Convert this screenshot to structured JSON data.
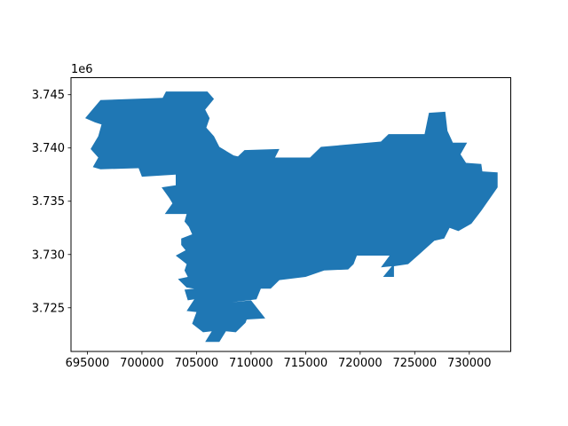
{
  "chart_data": {
    "type": "area",
    "title": "",
    "xlabel": "",
    "ylabel": "",
    "y_offset_label": "1e6",
    "xlim": [
      693500,
      733800
    ],
    "ylim": [
      3720900,
      3746600
    ],
    "xticks": [
      {
        "value": 695000,
        "label": "695000"
      },
      {
        "value": 700000,
        "label": "700000"
      },
      {
        "value": 705000,
        "label": "705000"
      },
      {
        "value": 710000,
        "label": "710000"
      },
      {
        "value": 715000,
        "label": "715000"
      },
      {
        "value": 720000,
        "label": "720000"
      },
      {
        "value": 725000,
        "label": "725000"
      },
      {
        "value": 730000,
        "label": "730000"
      }
    ],
    "yticks": [
      {
        "value": 3725000,
        "label": "3.725"
      },
      {
        "value": 3730000,
        "label": "3.730"
      },
      {
        "value": 3735000,
        "label": "3.735"
      },
      {
        "value": 3740000,
        "label": "3.740"
      },
      {
        "value": 3745000,
        "label": "3.745"
      }
    ],
    "grid": false,
    "fill_color": "#1f77b4",
    "polygon": [
      [
        694800,
        3742800
      ],
      [
        696200,
        3744500
      ],
      [
        701900,
        3744700
      ],
      [
        702200,
        3745300
      ],
      [
        706000,
        3745300
      ],
      [
        706600,
        3744600
      ],
      [
        705800,
        3743600
      ],
      [
        706200,
        3742800
      ],
      [
        705900,
        3741900
      ],
      [
        706600,
        3741100
      ],
      [
        707100,
        3740100
      ],
      [
        708400,
        3739300
      ],
      [
        708800,
        3739200
      ],
      [
        709400,
        3739800
      ],
      [
        712600,
        3739900
      ],
      [
        712200,
        3739100
      ],
      [
        715400,
        3739100
      ],
      [
        716400,
        3740100
      ],
      [
        721900,
        3740600
      ],
      [
        722600,
        3741300
      ],
      [
        725900,
        3741300
      ],
      [
        726300,
        3743300
      ],
      [
        727800,
        3743400
      ],
      [
        728000,
        3741600
      ],
      [
        728500,
        3740500
      ],
      [
        729800,
        3740500
      ],
      [
        729200,
        3739400
      ],
      [
        729700,
        3738600
      ],
      [
        731100,
        3738500
      ],
      [
        731200,
        3737800
      ],
      [
        732600,
        3737700
      ],
      [
        732600,
        3736300
      ],
      [
        731100,
        3734100
      ],
      [
        730200,
        3732900
      ],
      [
        729000,
        3732200
      ],
      [
        728200,
        3732500
      ],
      [
        727700,
        3731500
      ],
      [
        726800,
        3731300
      ],
      [
        725400,
        3730000
      ],
      [
        724400,
        3729100
      ],
      [
        723100,
        3728900
      ],
      [
        723100,
        3727900
      ],
      [
        722100,
        3727900
      ],
      [
        722900,
        3728900
      ],
      [
        721900,
        3728800
      ],
      [
        722700,
        3729900
      ],
      [
        719700,
        3729900
      ],
      [
        719400,
        3729100
      ],
      [
        718900,
        3728600
      ],
      [
        716700,
        3728500
      ],
      [
        715000,
        3727900
      ],
      [
        712600,
        3727600
      ],
      [
        711800,
        3726800
      ],
      [
        710900,
        3726800
      ],
      [
        710500,
        3725800
      ],
      [
        708200,
        3725500
      ],
      [
        710000,
        3725700
      ],
      [
        711300,
        3724000
      ],
      [
        709600,
        3723900
      ],
      [
        709500,
        3723600
      ],
      [
        708600,
        3722700
      ],
      [
        707700,
        3722800
      ],
      [
        707100,
        3721800
      ],
      [
        705800,
        3721800
      ],
      [
        706400,
        3722800
      ],
      [
        705600,
        3722700
      ],
      [
        704600,
        3723500
      ],
      [
        705000,
        3724600
      ],
      [
        704100,
        3724700
      ],
      [
        704800,
        3725800
      ],
      [
        704200,
        3725700
      ],
      [
        703900,
        3726700
      ],
      [
        704800,
        3726800
      ],
      [
        704100,
        3726900
      ],
      [
        703300,
        3727700
      ],
      [
        704200,
        3727900
      ],
      [
        703900,
        3728500
      ],
      [
        704100,
        3729100
      ],
      [
        703600,
        3729500
      ],
      [
        703100,
        3729900
      ],
      [
        704000,
        3730400
      ],
      [
        703600,
        3730900
      ],
      [
        703600,
        3731500
      ],
      [
        704600,
        3731900
      ],
      [
        704300,
        3732600
      ],
      [
        703900,
        3733100
      ],
      [
        704100,
        3733800
      ],
      [
        702100,
        3733800
      ],
      [
        702800,
        3734800
      ],
      [
        702500,
        3735300
      ],
      [
        701800,
        3736300
      ],
      [
        703100,
        3736500
      ],
      [
        703100,
        3737500
      ],
      [
        700000,
        3737300
      ],
      [
        699700,
        3738100
      ],
      [
        696200,
        3738000
      ],
      [
        695500,
        3738200
      ],
      [
        696000,
        3739100
      ],
      [
        695300,
        3739900
      ],
      [
        696000,
        3741100
      ],
      [
        696300,
        3742200
      ],
      [
        695700,
        3742400
      ]
    ]
  }
}
